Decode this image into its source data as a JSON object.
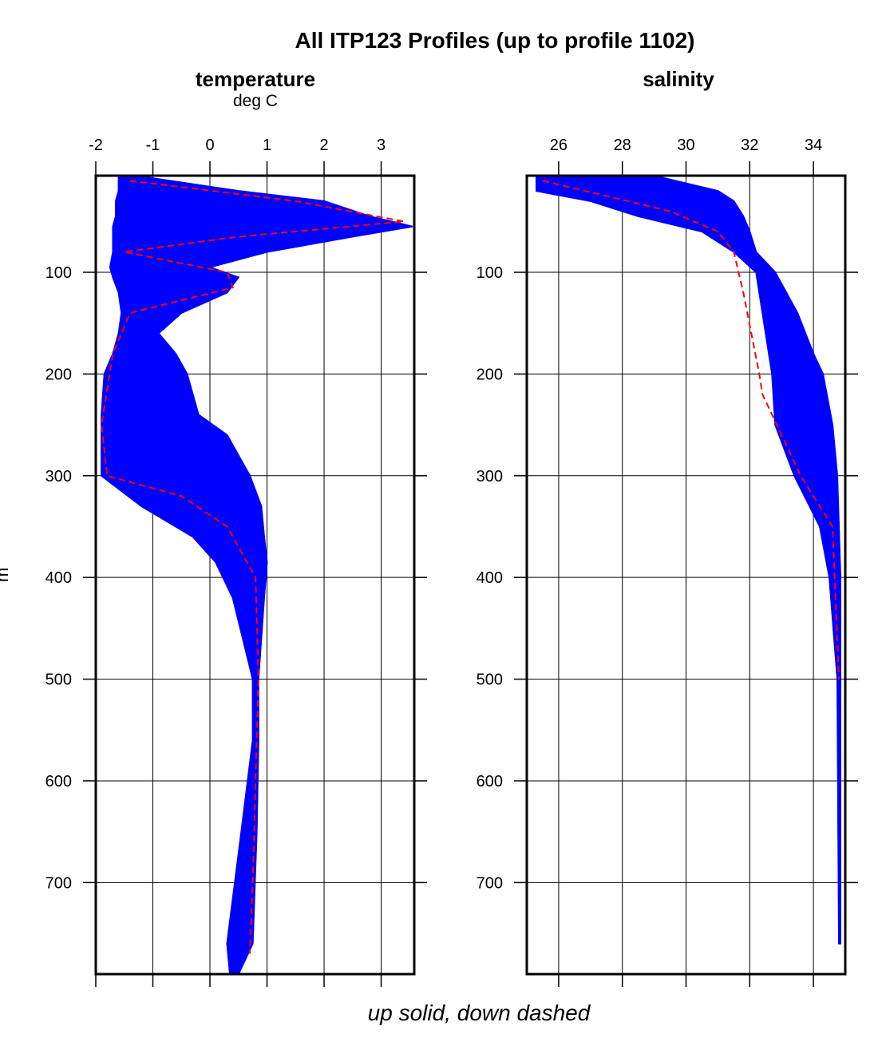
{
  "chart_data": [
    {
      "type": "line",
      "title": "All ITP123 Profiles (up to profile 1102)",
      "panel_title": "temperature",
      "units": "deg C",
      "ylabel": "m",
      "xlim": [
        -2,
        3.58
      ],
      "ylim": [
        5,
        790
      ],
      "y_reversed": true,
      "xticks": [
        -2,
        -1,
        0,
        1,
        2,
        3
      ],
      "yticks": [
        100,
        200,
        300,
        400,
        500,
        600,
        700
      ],
      "grid": true,
      "up_color": "#0000ff",
      "down_color": "#ff0000",
      "up_envelope": {
        "depth": [
          5,
          20,
          30,
          45,
          55,
          65,
          80,
          95,
          105,
          120,
          140,
          160,
          180,
          200,
          240,
          260,
          300,
          330,
          360,
          385,
          420,
          500,
          560,
          650,
          760,
          790
        ],
        "min": [
          -1.6,
          -1.6,
          -1.65,
          -1.65,
          -1.7,
          -1.7,
          -1.7,
          -1.75,
          -1.7,
          -1.6,
          -1.55,
          -1.6,
          -1.7,
          -1.85,
          -1.9,
          -1.9,
          -1.9,
          -1.2,
          -0.3,
          0.1,
          0.4,
          0.75,
          0.75,
          0.55,
          0.3,
          0.35
        ],
        "max": [
          -1.3,
          0.5,
          2.0,
          2.8,
          3.55,
          2.5,
          1.0,
          0.0,
          0.5,
          0.3,
          -0.5,
          -0.9,
          -0.6,
          -0.4,
          -0.2,
          0.3,
          0.7,
          0.9,
          0.95,
          1.0,
          0.95,
          0.85,
          0.85,
          0.82,
          0.75,
          0.5
        ]
      },
      "down_example": {
        "depth": [
          10,
          30,
          50,
          65,
          80,
          100,
          115,
          140,
          180,
          250,
          300,
          320,
          350,
          400,
          500,
          700,
          770
        ],
        "value": [
          -1.4,
          1.5,
          3.4,
          0.5,
          -1.5,
          0.3,
          0.4,
          -1.4,
          -1.7,
          -1.9,
          -1.8,
          -0.5,
          0.3,
          0.8,
          0.85,
          0.75,
          0.7
        ]
      }
    },
    {
      "type": "line",
      "panel_title": "salinity",
      "xlim": [
        25,
        35
      ],
      "ylim": [
        5,
        790
      ],
      "y_reversed": true,
      "xticks": [
        26,
        28,
        30,
        32,
        34
      ],
      "yticks": [
        100,
        200,
        300,
        400,
        500,
        600,
        700
      ],
      "grid": true,
      "up_envelope": {
        "depth": [
          5,
          20,
          30,
          45,
          60,
          80,
          100,
          140,
          180,
          200,
          250,
          300,
          350,
          400,
          500,
          760
        ],
        "min": [
          25.3,
          25.3,
          27,
          28.5,
          30.5,
          31.5,
          32.2,
          32.4,
          32.6,
          32.7,
          32.8,
          33.4,
          34.2,
          34.5,
          34.75,
          34.8
        ],
        "max": [
          29,
          31,
          31.5,
          31.8,
          32,
          32.2,
          32.8,
          33.5,
          34.0,
          34.3,
          34.6,
          34.75,
          34.8,
          34.85,
          34.85,
          34.85
        ]
      },
      "down_example": {
        "depth": [
          10,
          40,
          60,
          80,
          120,
          200,
          220,
          300,
          350,
          500
        ],
        "value": [
          25.5,
          29.5,
          31,
          31.5,
          31.8,
          32.3,
          32.4,
          33.6,
          34.6,
          34.8
        ]
      }
    }
  ],
  "footer": "up solid, down dashed"
}
